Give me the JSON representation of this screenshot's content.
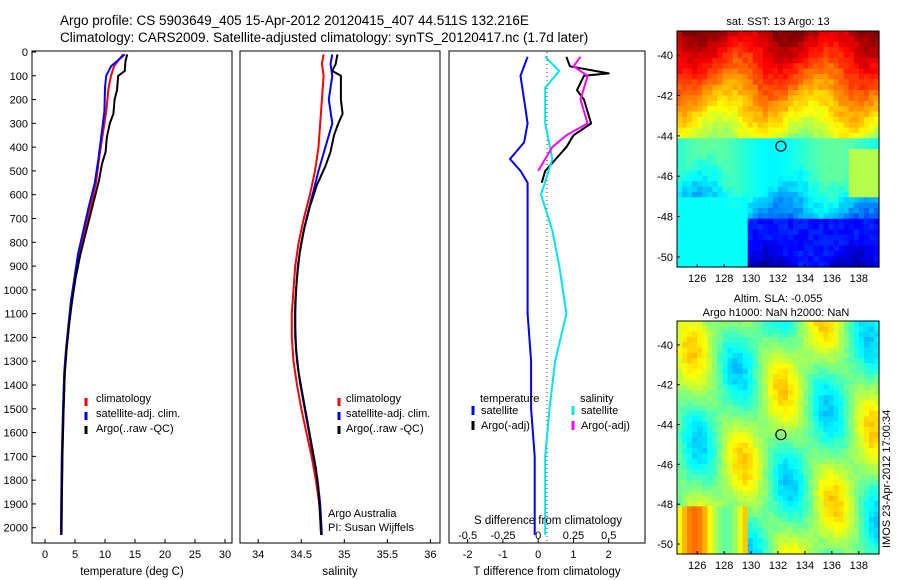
{
  "header": {
    "line1": "Argo profile: CS 5903649_405 15-Apr-2012 20120415_407 44.511S 132.216E",
    "line2": "Climatology: CARS2009. Satellite-adjusted climatology: synTS_20120417.nc (1.7d later)"
  },
  "colors": {
    "climatology": "#ff0000",
    "satellite": "#0000ff",
    "argo": "#000000",
    "sat_salinity": "#00e5ee",
    "argo_salinity": "#ff00ff"
  },
  "depth_ticks": [
    "0",
    "100",
    "200",
    "300",
    "400",
    "500",
    "600",
    "700",
    "800",
    "900",
    "1000",
    "1100",
    "1200",
    "1300",
    "1400",
    "1500",
    "1600",
    "1700",
    "1800",
    "1900",
    "2000"
  ],
  "chart_data": [
    {
      "type": "line",
      "id": "temperature",
      "xlabel": "temperature (deg C)",
      "xlim": [
        -2,
        31
      ],
      "ylim": [
        2060,
        0
      ],
      "x_ticks": [
        "0",
        "5",
        "10",
        "15",
        "20",
        "25",
        "30"
      ],
      "legend": [
        "climatology",
        "satellite-adj. clim.",
        "Argo(..raw -QC)"
      ],
      "legend_position": "lower-center",
      "series": [
        {
          "name": "climatology",
          "color": "#ff0000",
          "points": [
            [
              13.0,
              10
            ],
            [
              11.5,
              60
            ],
            [
              11.0,
              100
            ],
            [
              10.6,
              150
            ],
            [
              10.2,
              250
            ],
            [
              9.6,
              350
            ],
            [
              9.0,
              450
            ],
            [
              8.5,
              550
            ],
            [
              7.6,
              650
            ],
            [
              6.7,
              750
            ],
            [
              5.8,
              850
            ],
            [
              5.0,
              950
            ],
            [
              4.4,
              1050
            ],
            [
              4.0,
              1150
            ],
            [
              3.6,
              1250
            ],
            [
              3.3,
              1350
            ],
            [
              3.1,
              1500
            ],
            [
              2.9,
              1700
            ],
            [
              2.8,
              1900
            ],
            [
              2.75,
              2030
            ]
          ]
        },
        {
          "name": "satellite-adj. clim.",
          "color": "#0000ff",
          "points": [
            [
              13.3,
              10
            ],
            [
              11.0,
              60
            ],
            [
              10.2,
              100
            ],
            [
              10.0,
              150
            ],
            [
              9.9,
              250
            ],
            [
              9.4,
              350
            ],
            [
              8.9,
              450
            ],
            [
              8.3,
              550
            ],
            [
              7.3,
              650
            ],
            [
              6.4,
              750
            ],
            [
              5.5,
              850
            ],
            [
              4.9,
              950
            ],
            [
              4.3,
              1050
            ],
            [
              3.9,
              1150
            ],
            [
              3.5,
              1250
            ],
            [
              3.2,
              1350
            ],
            [
              3.0,
              1500
            ],
            [
              2.8,
              1700
            ],
            [
              2.7,
              1900
            ],
            [
              2.65,
              2030
            ]
          ]
        },
        {
          "name": "Argo(..raw -QC)",
          "color": "#000000",
          "points": [
            [
              13.7,
              10
            ],
            [
              13.4,
              40
            ],
            [
              13.3,
              80
            ],
            [
              12.2,
              100
            ],
            [
              12.0,
              160
            ],
            [
              11.6,
              200
            ],
            [
              11.4,
              260
            ],
            [
              10.8,
              300
            ],
            [
              10.3,
              360
            ],
            [
              10.1,
              420
            ],
            [
              9.5,
              470
            ],
            [
              9.0,
              540
            ],
            [
              8.6,
              580
            ],
            [
              7.9,
              650
            ],
            [
              6.9,
              750
            ],
            [
              5.9,
              850
            ],
            [
              5.1,
              950
            ],
            [
              4.5,
              1050
            ],
            [
              4.0,
              1150
            ],
            [
              3.6,
              1250
            ],
            [
              3.3,
              1350
            ],
            [
              3.1,
              1500
            ],
            [
              2.9,
              1700
            ],
            [
              2.8,
              1900
            ],
            [
              2.75,
              2030
            ]
          ]
        }
      ]
    },
    {
      "type": "line",
      "id": "salinity",
      "xlabel": "salinity",
      "xlim": [
        33.8,
        36.1
      ],
      "ylim": [
        2060,
        0
      ],
      "x_ticks": [
        "34",
        "34.5",
        "35",
        "35.5",
        "36"
      ],
      "legend": [
        "climatology",
        "satellite-adj. clim.",
        "Argo(..raw -QC)"
      ],
      "legend_position": "lower-right",
      "annotation": [
        "Argo Australia",
        "PI: Susan Wijffels"
      ],
      "series": [
        {
          "name": "climatology",
          "color": "#ff0000",
          "points": [
            [
              34.76,
              10
            ],
            [
              34.74,
              50
            ],
            [
              34.76,
              100
            ],
            [
              34.74,
              200
            ],
            [
              34.72,
              300
            ],
            [
              34.7,
              400
            ],
            [
              34.66,
              500
            ],
            [
              34.6,
              600
            ],
            [
              34.53,
              700
            ],
            [
              34.47,
              800
            ],
            [
              34.43,
              900
            ],
            [
              34.41,
              1000
            ],
            [
              34.39,
              1100
            ],
            [
              34.39,
              1200
            ],
            [
              34.41,
              1300
            ],
            [
              34.45,
              1400
            ],
            [
              34.5,
              1500
            ],
            [
              34.56,
              1600
            ],
            [
              34.62,
              1700
            ],
            [
              34.67,
              1800
            ],
            [
              34.71,
              1900
            ],
            [
              34.73,
              2030
            ]
          ]
        },
        {
          "name": "satellite-adj. clim.",
          "color": "#0000ff",
          "points": [
            [
              34.86,
              10
            ],
            [
              34.84,
              50
            ],
            [
              34.86,
              100
            ],
            [
              34.84,
              150
            ],
            [
              34.82,
              200
            ],
            [
              34.86,
              300
            ],
            [
              34.78,
              400
            ],
            [
              34.7,
              500
            ],
            [
              34.63,
              600
            ],
            [
              34.56,
              700
            ],
            [
              34.5,
              800
            ],
            [
              34.46,
              900
            ],
            [
              34.44,
              1000
            ],
            [
              34.43,
              1100
            ],
            [
              34.43,
              1200
            ],
            [
              34.45,
              1300
            ],
            [
              34.49,
              1400
            ],
            [
              34.54,
              1500
            ],
            [
              34.59,
              1600
            ],
            [
              34.64,
              1700
            ],
            [
              34.69,
              1800
            ],
            [
              34.72,
              1900
            ],
            [
              34.74,
              2030
            ]
          ]
        },
        {
          "name": "Argo(..raw -QC)",
          "color": "#000000",
          "points": [
            [
              34.92,
              10
            ],
            [
              34.9,
              50
            ],
            [
              34.86,
              80
            ],
            [
              34.96,
              100
            ],
            [
              34.96,
              200
            ],
            [
              34.98,
              260
            ],
            [
              34.93,
              300
            ],
            [
              34.88,
              350
            ],
            [
              34.84,
              420
            ],
            [
              34.78,
              480
            ],
            [
              34.68,
              560
            ],
            [
              34.6,
              650
            ],
            [
              34.53,
              750
            ],
            [
              34.48,
              850
            ],
            [
              34.45,
              950
            ],
            [
              34.43,
              1050
            ],
            [
              34.43,
              1150
            ],
            [
              34.44,
              1250
            ],
            [
              34.47,
              1350
            ],
            [
              34.52,
              1450
            ],
            [
              34.57,
              1550
            ],
            [
              34.62,
              1650
            ],
            [
              34.67,
              1750
            ],
            [
              34.7,
              1850
            ],
            [
              34.72,
              1950
            ],
            [
              34.73,
              2030
            ]
          ]
        }
      ]
    },
    {
      "type": "line",
      "id": "difference",
      "xlabel": "T difference from climatology",
      "xlabel_top": "S difference from climatology",
      "xlim": [
        -2.5,
        3.0
      ],
      "ylim": [
        2060,
        0
      ],
      "x_ticks": [
        "-2",
        "-1",
        "0",
        "1",
        "2"
      ],
      "x_ticks_s": [
        "-0.5",
        "-0.25",
        "0",
        "0.25",
        "0.5"
      ],
      "legend_temperature": {
        "title": "temperature",
        "items": [
          "satellite",
          "Argo(-adj)"
        ]
      },
      "legend_salinity": {
        "title": "salinity",
        "items": [
          "satellite",
          "Argo(-adj)"
        ]
      },
      "legend_position": "lower-center",
      "series": [
        {
          "name": "temperature satellite",
          "color": "#0000ff",
          "points": [
            [
              -0.3,
              20
            ],
            [
              -0.5,
              100
            ],
            [
              -0.4,
              200
            ],
            [
              -0.3,
              300
            ],
            [
              -0.4,
              380
            ],
            [
              -0.8,
              450
            ],
            [
              -0.5,
              500
            ],
            [
              -0.3,
              550
            ],
            [
              -0.3,
              700
            ],
            [
              -0.3,
              900
            ],
            [
              -0.3,
              1100
            ],
            [
              -0.2,
              1300
            ],
            [
              -0.2,
              1500
            ],
            [
              -0.1,
              1700
            ],
            [
              -0.1,
              1900
            ],
            [
              -0.1,
              2030
            ]
          ]
        },
        {
          "name": "temperature Argo(-adj)",
          "color": "#000000",
          "points": [
            [
              0.8,
              20
            ],
            [
              0.9,
              60
            ],
            [
              2.0,
              90
            ],
            [
              1.3,
              100
            ],
            [
              1.1,
              160
            ],
            [
              1.3,
              200
            ],
            [
              1.5,
              300
            ],
            [
              1.0,
              350
            ],
            [
              0.8,
              400
            ],
            [
              0.5,
              450
            ],
            [
              0.2,
              500
            ],
            [
              0.1,
              550
            ]
          ]
        },
        {
          "name": "salinity satellite",
          "color": "#00e5ee",
          "points": [
            [
              0.05,
              20
            ],
            [
              0.15,
              80
            ],
            [
              0.05,
              150
            ],
            [
              0.05,
              300
            ],
            [
              0.1,
              450
            ],
            [
              0.02,
              600
            ],
            [
              0.1,
              750
            ],
            [
              0.15,
              900
            ],
            [
              0.2,
              1100
            ],
            [
              0.12,
              1300
            ],
            [
              0.08,
              1500
            ],
            [
              0.05,
              1700
            ],
            [
              0.05,
              1900
            ],
            [
              0.05,
              2030
            ]
          ]
        },
        {
          "name": "salinity Argo(-adj)",
          "color": "#ff00ff",
          "points": [
            [
              0.3,
              20
            ],
            [
              0.25,
              60
            ],
            [
              0.35,
              100
            ],
            [
              0.3,
              200
            ],
            [
              0.35,
              300
            ],
            [
              0.2,
              350
            ],
            [
              0.1,
              400
            ],
            [
              0.05,
              450
            ],
            [
              0.0,
              500
            ]
          ]
        }
      ]
    },
    {
      "type": "heatmap",
      "id": "sst_map",
      "title": "sat. SST: 13 Argo: 13",
      "x_ticks": [
        "126",
        "128",
        "130",
        "132",
        "134",
        "136",
        "138"
      ],
      "y_ticks": [
        "-40",
        "-42",
        "-44",
        "-46",
        "-48",
        "-50"
      ],
      "xlim": [
        124.5,
        139.5
      ],
      "ylim": [
        -50.5,
        -38.8
      ],
      "marker": [
        132.216,
        -44.511
      ]
    },
    {
      "type": "heatmap",
      "id": "sla_map",
      "title": "Altim. SLA: -0.055",
      "subtitle": "Argo h1000: NaN h2000: NaN",
      "x_ticks": [
        "126",
        "128",
        "130",
        "132",
        "134",
        "136",
        "138"
      ],
      "y_ticks": [
        "-40",
        "-42",
        "-44",
        "-46",
        "-48",
        "-50"
      ],
      "xlim": [
        124.5,
        139.5
      ],
      "ylim": [
        -50.5,
        -38.8
      ],
      "marker": [
        132.216,
        -44.511
      ]
    }
  ],
  "footer_vertical": "IMOS 23-Apr-2012 17:00:34"
}
